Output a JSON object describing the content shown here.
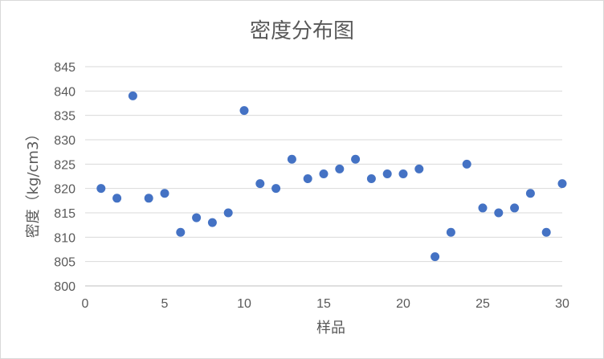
{
  "chart_data": {
    "type": "scatter",
    "title": "密度分布图",
    "xlabel": "样品",
    "ylabel": "密度（kg/cm3）",
    "xlim": [
      0,
      30
    ],
    "ylim": [
      800,
      845
    ],
    "x_ticks": [
      0,
      5,
      10,
      15,
      20,
      25,
      30
    ],
    "y_ticks": [
      800,
      805,
      810,
      815,
      820,
      825,
      830,
      835,
      840,
      845
    ],
    "grid": true,
    "legend": "none",
    "marker_color": "#4472c4",
    "series": [
      {
        "x": [
          1,
          2,
          3,
          4,
          5,
          6,
          7,
          8,
          9,
          10,
          11,
          12,
          13,
          14,
          15,
          16,
          17,
          18,
          19,
          20,
          21,
          22,
          23,
          24,
          25,
          26,
          27,
          28,
          29,
          30
        ],
        "y": [
          820,
          818,
          839,
          818,
          819,
          811,
          814,
          813,
          815,
          836,
          821,
          820,
          826,
          822,
          823,
          824,
          826,
          822,
          823,
          823,
          824,
          806,
          811,
          825,
          816,
          815,
          816,
          819,
          811,
          821
        ]
      }
    ]
  }
}
